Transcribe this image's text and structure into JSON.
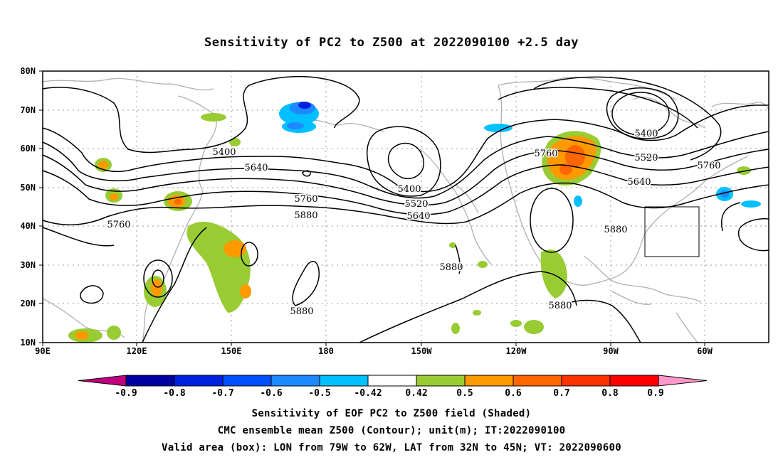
{
  "title": "Sensitivity of PC2 to Z500 at 2022090100 +2.5 day",
  "lat_labels": [
    "80N",
    "70N",
    "60N",
    "50N",
    "40N",
    "30N",
    "20N",
    "10N"
  ],
  "lon_labels": [
    "90E",
    "120E",
    "150E",
    "180",
    "150W",
    "120W",
    "90W",
    "60W"
  ],
  "contour_labels": [
    {
      "text": "5400"
    },
    {
      "text": "5640"
    },
    {
      "text": "5760"
    },
    {
      "text": "5880"
    },
    {
      "text": "5760"
    },
    {
      "text": "5400"
    },
    {
      "text": "5520"
    },
    {
      "text": "5640"
    },
    {
      "text": "5880"
    },
    {
      "text": "5880"
    },
    {
      "text": "5760"
    },
    {
      "text": "5400"
    },
    {
      "text": "5520"
    },
    {
      "text": "5640"
    },
    {
      "text": "5760"
    },
    {
      "text": "5880"
    },
    {
      "text": "5880"
    }
  ],
  "colorbar": {
    "labels": [
      "-0.9",
      "-0.8",
      "-0.7",
      "-0.6",
      "-0.5",
      "-0.42",
      "0.42",
      "0.5",
      "0.6",
      "0.7",
      "0.8",
      "0.9"
    ],
    "colors": [
      "#c00080",
      "#0000a0",
      "#0020e0",
      "#0050ff",
      "#1e88ff",
      "#00c0ff",
      "#ffffff",
      "#99cc33",
      "#ff9900",
      "#ff6600",
      "#ff3300",
      "#ff0000",
      "#ff99cc"
    ]
  },
  "footer": {
    "line1": "Sensitivity of EOF PC2 to Z500 field (Shaded)",
    "line2": "CMC ensemble mean Z500 (Contour); unit(m); IT:2022090100",
    "line3": "Valid area (box): LON from 79W to 62W, LAT from 32N to 45N; VT: 2022090600"
  },
  "valid_area": {
    "lon_from": "79W",
    "lon_to": "62W",
    "lat_from": "32N",
    "lat_to": "45N"
  }
}
